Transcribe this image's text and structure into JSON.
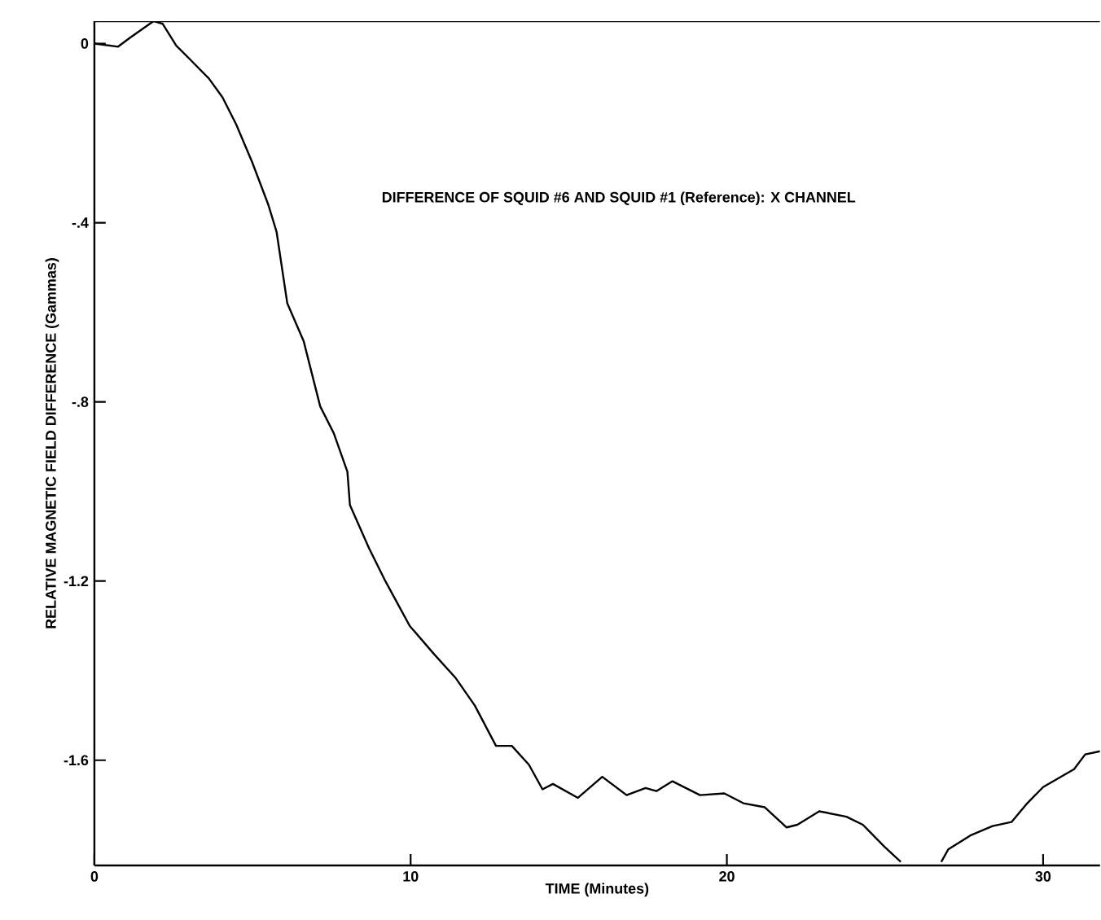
{
  "chart_data": {
    "type": "line",
    "xlabel": "TIME (Minutes)",
    "ylabel": "RELATIVE MAGNETIC FIELD DIFFERENCE (Gammas)",
    "annotations": [
      "DIFFERENCE OF SQUID  #6 AND SQUID  #1 (Reference): X CHANNEL"
    ],
    "xlim": [
      0,
      31.8
    ],
    "ylim": [
      -1.835,
      0.05
    ],
    "xticks": [
      0,
      10,
      20,
      30
    ],
    "yticks": [
      0,
      {
        "value": -0.4,
        "label": "-.4"
      },
      {
        "value": -0.8,
        "label": "-.8"
      },
      {
        "value": -1.2,
        "label": "-1.2"
      },
      {
        "value": -1.6,
        "label": "-1.6"
      }
    ],
    "series": [
      {
        "color": "#000000",
        "x": [
          0,
          0.75,
          1.13,
          1.87,
          2.16,
          2.59,
          3.02,
          3.62,
          4.05,
          4.48,
          4.99,
          5.5,
          5.76,
          6.1,
          6.62,
          7.14,
          7.57,
          8.0,
          8.08,
          8.68,
          9.2,
          9.97,
          10.74,
          11.43,
          12.03,
          12.7,
          13.2,
          13.74,
          14.17,
          14.5,
          15.29,
          16.06,
          16.83,
          17.43,
          17.77,
          18.28,
          19.15,
          19.92,
          20.52,
          21.2,
          21.89,
          22.23,
          22.92,
          23.78,
          24.3,
          24.98,
          25.5,
          26.1,
          26.78,
          27.0,
          27.7,
          28.4,
          29.0,
          29.5,
          30.0,
          30.98,
          31.33,
          31.8
        ],
        "values": [
          0,
          -0.007,
          0.013,
          0.05,
          0.044,
          -0.005,
          -0.035,
          -0.078,
          -0.12,
          -0.18,
          -0.265,
          -0.36,
          -0.42,
          -0.58,
          -0.665,
          -0.81,
          -0.87,
          -0.956,
          -1.03,
          -1.126,
          -1.2,
          -1.3,
          -1.363,
          -1.417,
          -1.478,
          -1.568,
          -1.568,
          -1.61,
          -1.665,
          -1.653,
          -1.684,
          -1.637,
          -1.678,
          -1.662,
          -1.669,
          -1.647,
          -1.678,
          -1.674,
          -1.696,
          -1.705,
          -1.75,
          -1.744,
          -1.714,
          -1.726,
          -1.744,
          -1.793,
          -1.827,
          null,
          -1.827,
          -1.799,
          -1.768,
          -1.747,
          -1.738,
          -1.696,
          -1.66,
          -1.62,
          -1.587,
          -1.58
        ]
      }
    ]
  }
}
